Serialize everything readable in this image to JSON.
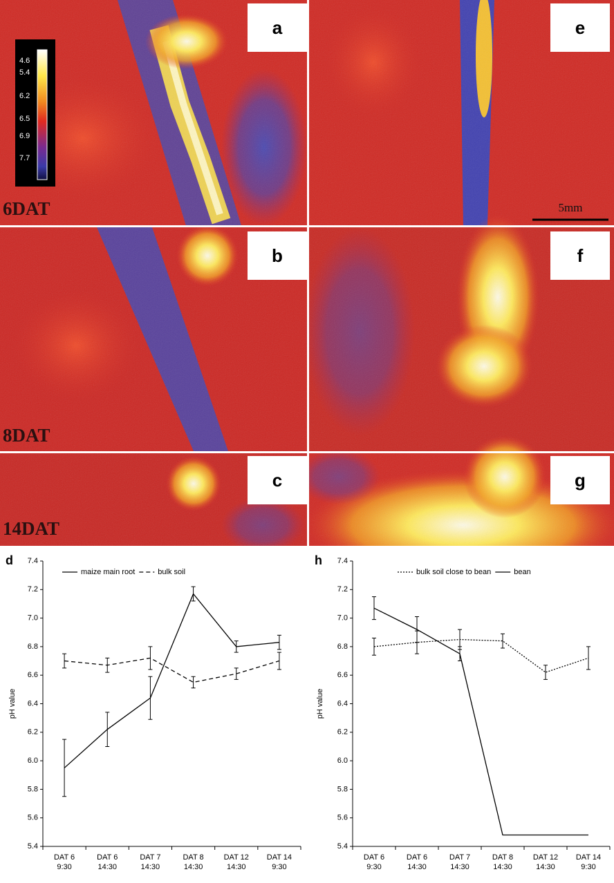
{
  "figure": {
    "panel_labels": [
      "a",
      "b",
      "c",
      "e",
      "f",
      "g"
    ],
    "row_labels": [
      "6DAT",
      "8DAT",
      "14DAT"
    ],
    "scale_bar": "5mm",
    "colorbar_ticks": [
      4.6,
      5.4,
      6.2,
      6.5,
      6.9,
      7.7
    ]
  },
  "chart_data": [
    {
      "type": "line",
      "panel_label": "d",
      "y_label": "pH value",
      "categories": [
        "DAT 6\n9:30",
        "DAT 6\n14:30",
        "DAT 7\n14:30",
        "DAT 8\n14:30",
        "DAT 12\n14:30",
        "DAT 14\n9:30"
      ],
      "ylim": [
        5.4,
        7.4
      ],
      "yticks": [
        5.4,
        5.6,
        5.8,
        {
          "value": 6,
          "label": "6.0"
        },
        6.2,
        6.4,
        6.6,
        6.8,
        {
          "value": 7,
          "label": "7.0"
        },
        7.2,
        7.4
      ],
      "legend": "upper left",
      "series": [
        {
          "name": "maize main root",
          "color": "#000000",
          "dash": "solid",
          "values": [
            5.95,
            6.22,
            6.44,
            7.17,
            6.8,
            6.83
          ],
          "errors": [
            0.2,
            0.12,
            0.15,
            0.05,
            0.04,
            0.05
          ]
        },
        {
          "name": "bulk soil",
          "color": "#000000",
          "dash": "dashed",
          "values": [
            6.7,
            6.67,
            6.72,
            6.55,
            6.61,
            6.7
          ],
          "errors": [
            0.05,
            0.05,
            0.08,
            0.04,
            0.04,
            0.06
          ]
        }
      ]
    },
    {
      "type": "line",
      "panel_label": "h",
      "y_label": "pH value",
      "categories": [
        "DAT 6\n9:30",
        "DAT 6\n14:30",
        "DAT 7\n14:30",
        "DAT 8\n14:30",
        "DAT 12\n14:30",
        "DAT 14\n9:30"
      ],
      "ylim": [
        5.4,
        7.4
      ],
      "yticks": [
        5.4,
        5.6,
        5.8,
        {
          "value": 6,
          "label": "6.0"
        },
        6.2,
        6.4,
        6.6,
        6.8,
        {
          "value": 7,
          "label": "7.0"
        },
        7.2,
        7.4
      ],
      "legend": "upper left",
      "series": [
        {
          "name": "bulk soil close to bean",
          "color": "#000000",
          "dash": "dotted",
          "values": [
            6.8,
            6.83,
            6.85,
            6.84,
            6.62,
            6.72
          ],
          "errors": [
            0.06,
            0.08,
            0.07,
            0.05,
            0.05,
            0.08
          ]
        },
        {
          "name": "bean",
          "color": "#000000",
          "dash": "solid",
          "values": [
            7.07,
            6.92,
            6.75,
            5.48,
            5.48,
            5.48
          ],
          "errors": [
            0.08,
            0.09,
            0.05,
            null,
            null,
            null
          ]
        }
      ]
    }
  ]
}
